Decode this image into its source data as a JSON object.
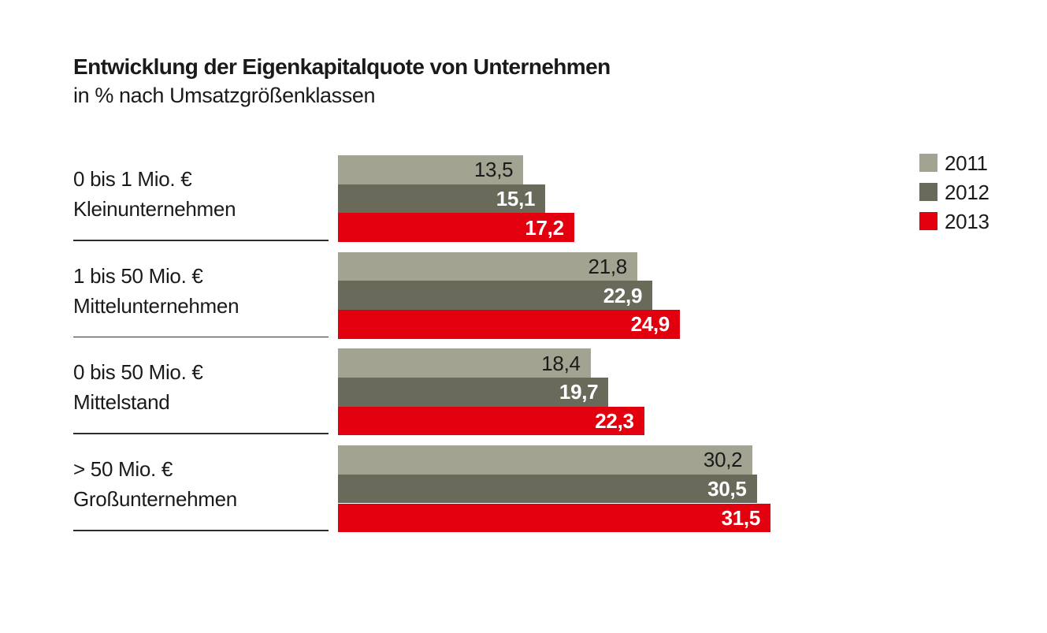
{
  "title": "Entwicklung der Eigenkapitalquote von Unternehmen",
  "subtitle": "in % nach Umsatzgrößenklassen",
  "legend": {
    "position": "top-right",
    "items": [
      {
        "label": "2011",
        "color": "#a3a392"
      },
      {
        "label": "2012",
        "color": "#6a6a5b"
      },
      {
        "label": "2013",
        "color": "#e2000f"
      }
    ]
  },
  "chart_data": {
    "type": "bar",
    "orientation": "horizontal",
    "title": "Entwicklung der Eigenkapitalquote von Unternehmen",
    "subtitle": "in % nach Umsatzgrößenklassen",
    "unit": "%",
    "grid": false,
    "axes_visible": false,
    "xlim": [
      0,
      31.5
    ],
    "categories": [
      {
        "line1": "0 bis 1 Mio. €",
        "line2": "Kleinunternehmen"
      },
      {
        "line1": "1 bis 50 Mio. €",
        "line2": "Mittelunternehmen"
      },
      {
        "line1": "0 bis 50 Mio. €",
        "line2": "Mittelstand"
      },
      {
        "line1": "> 50 Mio. €",
        "line2": "Großunternehmen"
      }
    ],
    "series": [
      {
        "name": "2011",
        "color": "#a3a392",
        "value_label_color": "#1a1a1a",
        "value_label_bold": false,
        "values": [
          13.5,
          21.8,
          18.4,
          30.2
        ],
        "labels": [
          "13,5",
          "21,8",
          "18,4",
          "30,2"
        ]
      },
      {
        "name": "2012",
        "color": "#6a6a5b",
        "value_label_color": "#ffffff",
        "value_label_bold": true,
        "values": [
          15.1,
          22.9,
          19.7,
          30.5
        ],
        "labels": [
          "15,1",
          "22,9",
          "19,7",
          "30,5"
        ]
      },
      {
        "name": "2013",
        "color": "#e2000f",
        "value_label_color": "#ffffff",
        "value_label_bold": true,
        "values": [
          17.2,
          24.9,
          22.3,
          31.5
        ],
        "labels": [
          "17,2",
          "24,9",
          "22,3",
          "31,5"
        ]
      }
    ]
  }
}
